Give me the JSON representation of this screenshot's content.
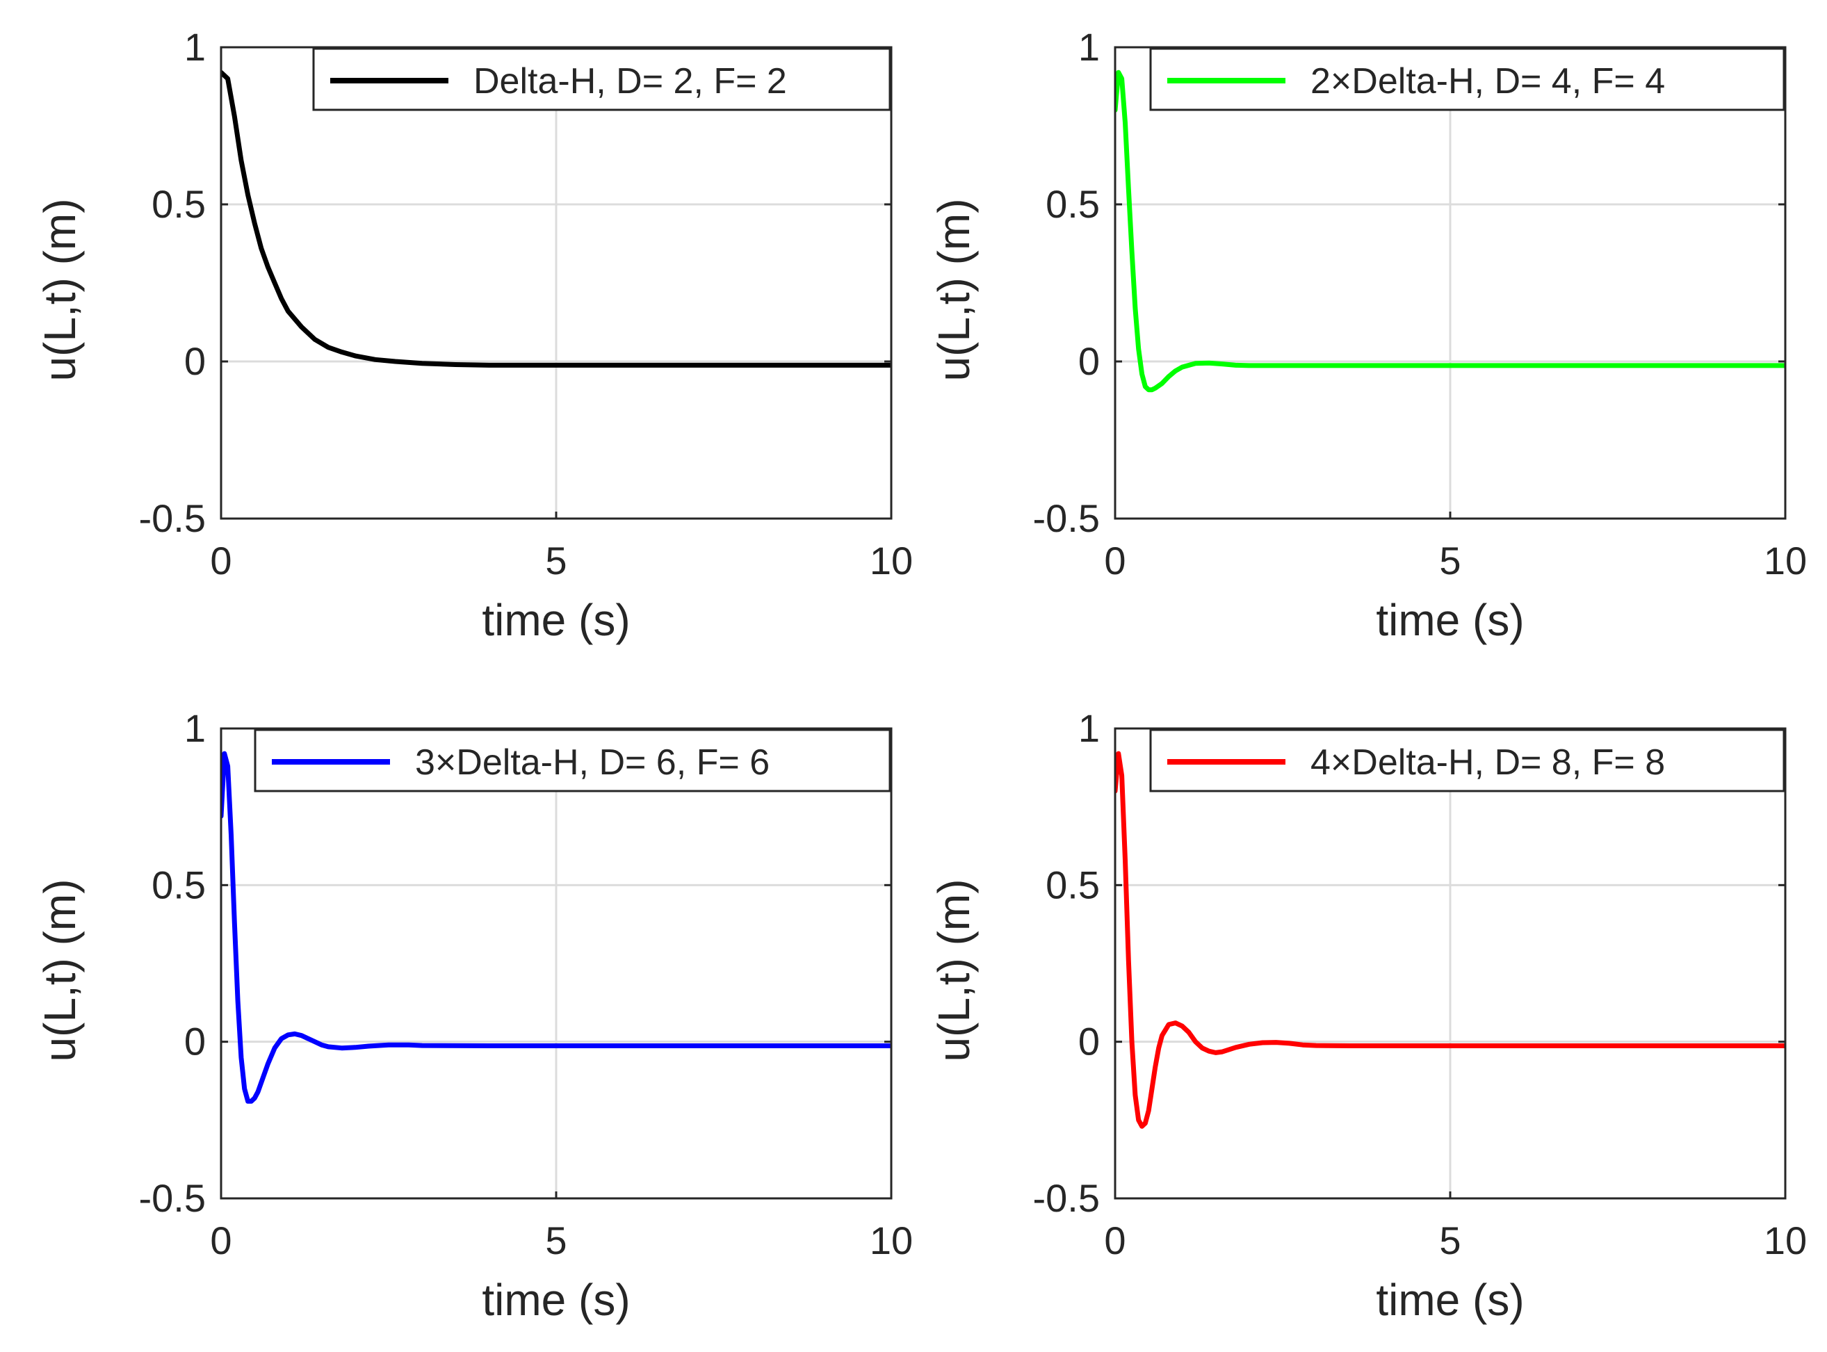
{
  "figure": {
    "background": "#ffffff"
  },
  "chart_data": [
    {
      "type": "line",
      "xlabel": "time (s)",
      "ylabel": "u(L,t) (m)",
      "xlim": [
        0,
        10
      ],
      "ylim": [
        -0.5,
        1
      ],
      "xticks": [
        0,
        5,
        10
      ],
      "xtick_labels": [
        "0",
        "5",
        "10"
      ],
      "yticks": [
        -0.5,
        0,
        0.5,
        1
      ],
      "ytick_labels": [
        "-0.5",
        "0",
        "0.5",
        "1"
      ],
      "grid": true,
      "legend_position": "top-right",
      "series": [
        {
          "name": "Delta-H, D= 2, F= 2",
          "color": "#000000",
          "x": [
            0.0,
            0.1,
            0.2,
            0.3,
            0.4,
            0.5,
            0.6,
            0.7,
            0.8,
            0.9,
            1.0,
            1.2,
            1.4,
            1.6,
            1.8,
            2.0,
            2.3,
            2.6,
            3.0,
            3.5,
            4.0,
            5.0,
            6.0,
            7.0,
            8.0,
            9.0,
            10.0
          ],
          "y": [
            0.92,
            0.9,
            0.78,
            0.64,
            0.53,
            0.44,
            0.36,
            0.3,
            0.25,
            0.2,
            0.16,
            0.11,
            0.07,
            0.045,
            0.03,
            0.018,
            0.006,
            0.0,
            -0.006,
            -0.01,
            -0.012,
            -0.012,
            -0.012,
            -0.012,
            -0.012,
            -0.012,
            -0.012
          ]
        }
      ]
    },
    {
      "type": "line",
      "xlabel": "time (s)",
      "ylabel": "u(L,t) (m)",
      "xlim": [
        0,
        10
      ],
      "ylim": [
        -0.5,
        1
      ],
      "xticks": [
        0,
        5,
        10
      ],
      "xtick_labels": [
        "0",
        "5",
        "10"
      ],
      "yticks": [
        -0.5,
        0,
        0.5,
        1
      ],
      "ytick_labels": [
        "-0.5",
        "0",
        "0.5",
        "1"
      ],
      "grid": true,
      "legend_position": "top-right",
      "series": [
        {
          "name": "2×Delta-H, D= 4, F= 4",
          "color": "#00ff00",
          "x": [
            0.0,
            0.05,
            0.1,
            0.15,
            0.2,
            0.25,
            0.3,
            0.35,
            0.4,
            0.45,
            0.5,
            0.55,
            0.6,
            0.7,
            0.8,
            0.9,
            1.0,
            1.2,
            1.4,
            1.6,
            1.8,
            2.0,
            2.5,
            3.0,
            4.0,
            5.0,
            6.0,
            7.0,
            8.0,
            9.0,
            10.0
          ],
          "y": [
            0.8,
            0.92,
            0.9,
            0.76,
            0.55,
            0.35,
            0.17,
            0.04,
            -0.04,
            -0.08,
            -0.09,
            -0.09,
            -0.085,
            -0.07,
            -0.048,
            -0.03,
            -0.018,
            -0.006,
            -0.005,
            -0.008,
            -0.012,
            -0.013,
            -0.013,
            -0.013,
            -0.013,
            -0.013,
            -0.013,
            -0.013,
            -0.013,
            -0.013,
            -0.013
          ]
        }
      ]
    },
    {
      "type": "line",
      "xlabel": "time (s)",
      "ylabel": "u(L,t) (m)",
      "xlim": [
        0,
        10
      ],
      "ylim": [
        -0.5,
        1
      ],
      "xticks": [
        0,
        5,
        10
      ],
      "xtick_labels": [
        "0",
        "5",
        "10"
      ],
      "yticks": [
        -0.5,
        0,
        0.5,
        1
      ],
      "ytick_labels": [
        "-0.5",
        "0",
        "0.5",
        "1"
      ],
      "grid": true,
      "legend_position": "top-right",
      "series": [
        {
          "name": "3×Delta-H, D= 6, F= 6",
          "color": "#0000ff",
          "x": [
            0.0,
            0.05,
            0.1,
            0.15,
            0.2,
            0.25,
            0.3,
            0.35,
            0.4,
            0.45,
            0.5,
            0.55,
            0.6,
            0.7,
            0.8,
            0.9,
            1.0,
            1.1,
            1.2,
            1.3,
            1.4,
            1.5,
            1.6,
            1.8,
            2.0,
            2.2,
            2.5,
            2.8,
            3.0,
            4.0,
            5.0,
            6.0,
            7.0,
            8.0,
            9.0,
            10.0
          ],
          "y": [
            0.72,
            0.92,
            0.88,
            0.66,
            0.38,
            0.13,
            -0.05,
            -0.15,
            -0.19,
            -0.19,
            -0.18,
            -0.16,
            -0.13,
            -0.07,
            -0.02,
            0.01,
            0.022,
            0.025,
            0.02,
            0.01,
            0.0,
            -0.01,
            -0.016,
            -0.02,
            -0.018,
            -0.014,
            -0.01,
            -0.01,
            -0.012,
            -0.013,
            -0.013,
            -0.013,
            -0.013,
            -0.013,
            -0.013,
            -0.013
          ]
        }
      ]
    },
    {
      "type": "line",
      "xlabel": "time (s)",
      "ylabel": "u(L,t) (m)",
      "xlim": [
        0,
        10
      ],
      "ylim": [
        -0.5,
        1
      ],
      "xticks": [
        0,
        5,
        10
      ],
      "xtick_labels": [
        "0",
        "5",
        "10"
      ],
      "yticks": [
        -0.5,
        0,
        0.5,
        1
      ],
      "ytick_labels": [
        "-0.5",
        "0",
        "0.5",
        "1"
      ],
      "grid": true,
      "legend_position": "top-right",
      "series": [
        {
          "name": "4×Delta-H, D= 8, F= 8",
          "color": "#ff0000",
          "x": [
            0.0,
            0.05,
            0.1,
            0.15,
            0.2,
            0.25,
            0.3,
            0.35,
            0.4,
            0.45,
            0.5,
            0.55,
            0.6,
            0.65,
            0.7,
            0.8,
            0.9,
            1.0,
            1.1,
            1.2,
            1.3,
            1.4,
            1.5,
            1.6,
            1.7,
            1.8,
            2.0,
            2.2,
            2.4,
            2.6,
            2.8,
            3.0,
            3.5,
            4.0,
            5.0,
            6.0,
            7.0,
            8.0,
            9.0,
            10.0
          ],
          "y": [
            0.8,
            0.92,
            0.85,
            0.58,
            0.26,
            0.0,
            -0.17,
            -0.25,
            -0.27,
            -0.26,
            -0.22,
            -0.15,
            -0.08,
            -0.02,
            0.02,
            0.055,
            0.06,
            0.05,
            0.03,
            0.0,
            -0.02,
            -0.03,
            -0.035,
            -0.032,
            -0.025,
            -0.018,
            -0.008,
            -0.003,
            -0.002,
            -0.005,
            -0.01,
            -0.012,
            -0.013,
            -0.013,
            -0.013,
            -0.013,
            -0.013,
            -0.013,
            -0.013,
            -0.013
          ]
        }
      ]
    }
  ]
}
